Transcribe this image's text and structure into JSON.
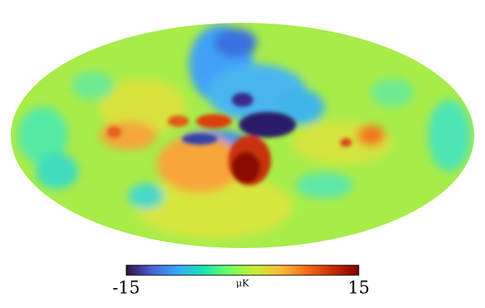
{
  "chart_data": {
    "type": "mollweide",
    "colormap": "turbo",
    "unit": "μK",
    "clim": [
      -15,
      15
    ],
    "cticks": [
      -15,
      15
    ]
  }
}
